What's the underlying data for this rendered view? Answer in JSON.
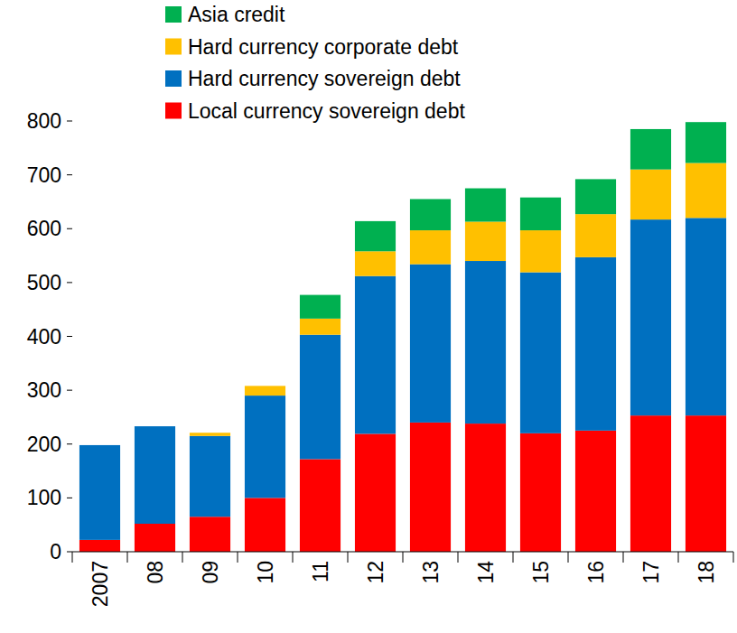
{
  "chart_data": {
    "type": "bar",
    "stacked": true,
    "legend": "top",
    "categories": [
      "2007",
      "08",
      "09",
      "10",
      "11",
      "12",
      "13",
      "14",
      "15",
      "16",
      "17",
      "18"
    ],
    "series": [
      {
        "name": "Local currency sovereign debt",
        "color": "#ff0000",
        "values": [
          22,
          52,
          65,
          100,
          172,
          219,
          240,
          238,
          220,
          225,
          253,
          253
        ]
      },
      {
        "name": "Hard currency sovereign debt",
        "color": "#0070c0",
        "values": [
          176,
          181,
          150,
          190,
          231,
          293,
          294,
          302,
          299,
          322,
          364,
          367
        ]
      },
      {
        "name": "Hard currency corporate debt",
        "color": "#ffc000",
        "values": [
          0,
          0,
          6,
          18,
          30,
          46,
          63,
          73,
          78,
          80,
          93,
          102
        ]
      },
      {
        "name": "Asia credit",
        "color": "#00b050",
        "values": [
          0,
          0,
          0,
          0,
          44,
          56,
          58,
          62,
          61,
          65,
          75,
          76
        ]
      }
    ],
    "ylim": [
      0,
      800
    ],
    "yticks": [
      0,
      100,
      200,
      300,
      400,
      500,
      600,
      700,
      800
    ],
    "grid": false
  }
}
